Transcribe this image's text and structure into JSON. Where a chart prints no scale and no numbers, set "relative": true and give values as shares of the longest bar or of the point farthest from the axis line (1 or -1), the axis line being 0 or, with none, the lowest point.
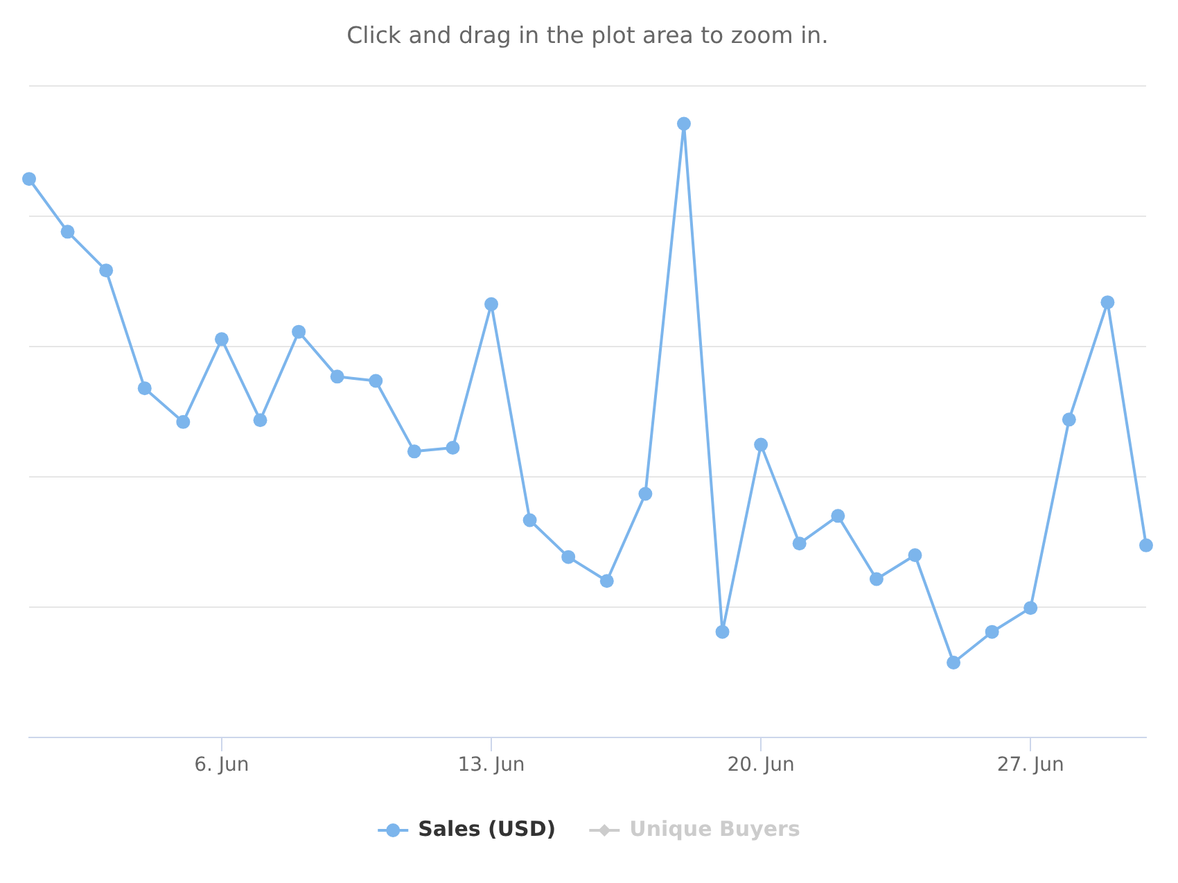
{
  "chart_data": {
    "type": "line",
    "subtitle": "Click and drag in the plot area to zoom in.",
    "categories": [
      null,
      null,
      null,
      null,
      null,
      "6. Jun",
      null,
      null,
      null,
      null,
      null,
      null,
      "13. Jun",
      null,
      null,
      null,
      null,
      null,
      null,
      "20. Jun",
      null,
      null,
      null,
      null,
      null,
      null,
      "27. Jun",
      null,
      null,
      null
    ],
    "series": [
      {
        "name": "Sales (USD)",
        "color": "#7cb5ec",
        "values": [
          0.91,
          0.824,
          0.761,
          0.569,
          0.514,
          0.649,
          0.517,
          0.661,
          0.588,
          0.581,
          0.466,
          0.472,
          0.706,
          0.354,
          0.294,
          0.255,
          0.397,
          1,
          0.172,
          0.477,
          0.316,
          0.361,
          0.258,
          0.297,
          0.122,
          0.172,
          0.211,
          0.518,
          0.709,
          0.313
        ]
      },
      {
        "name": "Unique Buyers",
        "color": "#cccccc",
        "marker": "diamond",
        "values": [
          null,
          null,
          null,
          null,
          null,
          null,
          null,
          null,
          null,
          null,
          null,
          null,
          null,
          null,
          null,
          null,
          null,
          null,
          null,
          null,
          null,
          null,
          null,
          null,
          null,
          null,
          null,
          null,
          null,
          null
        ]
      }
    ],
    "relative": true,
    "grid": "y",
    "legend": "bottom",
    "marker": "circle"
  }
}
